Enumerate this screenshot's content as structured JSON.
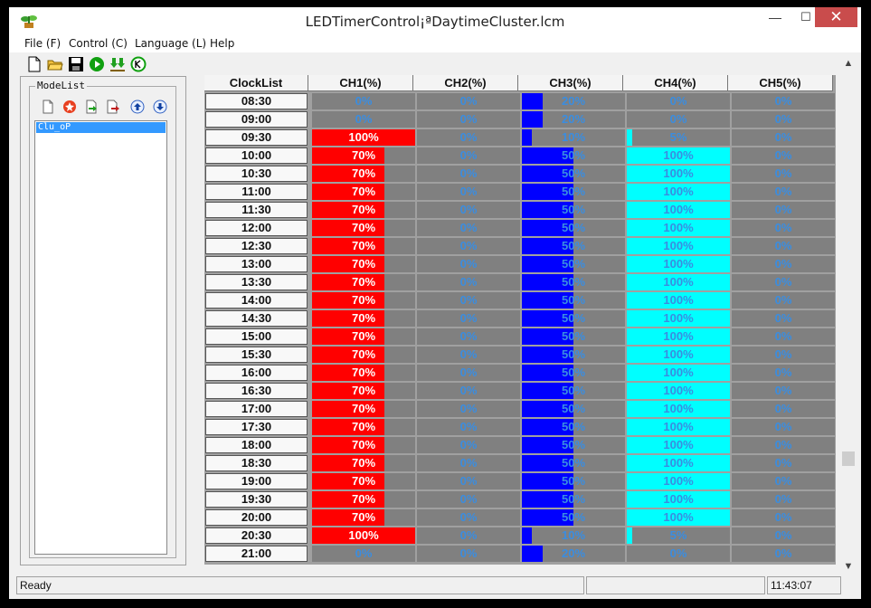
{
  "window": {
    "title": "LEDTimerControl¡ªDaytimeCluster.lcm",
    "minimize_label": "—",
    "maximize_label": "☐",
    "close_label": "✕"
  },
  "menu": [
    {
      "label": "File (F)"
    },
    {
      "label": "Control (C)"
    },
    {
      "label": "Language (L)"
    },
    {
      "label": "Help"
    }
  ],
  "toolbar": {
    "icons": [
      "new-file-icon",
      "open-folder-icon",
      "save-icon",
      "play-icon",
      "download-icon",
      "clock-icon"
    ]
  },
  "modelist": {
    "title": "ModeList",
    "tools": [
      "new-mode-icon",
      "delete-mode-icon",
      "import-icon",
      "export-icon",
      "move-up-icon",
      "move-down-icon"
    ],
    "items": [
      "Clu_oP"
    ]
  },
  "grid": {
    "columns": [
      "ClockList",
      "CH1(%)",
      "CH2(%)",
      "CH3(%)",
      "CH4(%)",
      "CH5(%)"
    ],
    "channel_colors": [
      "#ff0000",
      "#808080",
      "#0000ff",
      "#00ffff",
      "#808080"
    ],
    "rows": [
      {
        "time": "08:30",
        "values": [
          "0%",
          "0%",
          "20%",
          "0%",
          "0%"
        ],
        "levels": [
          0,
          0,
          20,
          0,
          0
        ]
      },
      {
        "time": "09:00",
        "values": [
          "0%",
          "0%",
          "20%",
          "0%",
          "0%"
        ],
        "levels": [
          0,
          0,
          20,
          0,
          0
        ]
      },
      {
        "time": "09:30",
        "values": [
          "100%",
          "0%",
          "10%",
          "5%",
          "0%"
        ],
        "levels": [
          100,
          0,
          10,
          5,
          0
        ]
      },
      {
        "time": "10:00",
        "values": [
          "70%",
          "0%",
          "50%",
          "100%",
          "0%"
        ],
        "levels": [
          70,
          0,
          50,
          100,
          0
        ]
      },
      {
        "time": "10:30",
        "values": [
          "70%",
          "0%",
          "50%",
          "100%",
          "0%"
        ],
        "levels": [
          70,
          0,
          50,
          100,
          0
        ]
      },
      {
        "time": "11:00",
        "values": [
          "70%",
          "0%",
          "50%",
          "100%",
          "0%"
        ],
        "levels": [
          70,
          0,
          50,
          100,
          0
        ]
      },
      {
        "time": "11:30",
        "values": [
          "70%",
          "0%",
          "50%",
          "100%",
          "0%"
        ],
        "levels": [
          70,
          0,
          50,
          100,
          0
        ]
      },
      {
        "time": "12:00",
        "values": [
          "70%",
          "0%",
          "50%",
          "100%",
          "0%"
        ],
        "levels": [
          70,
          0,
          50,
          100,
          0
        ]
      },
      {
        "time": "12:30",
        "values": [
          "70%",
          "0%",
          "50%",
          "100%",
          "0%"
        ],
        "levels": [
          70,
          0,
          50,
          100,
          0
        ]
      },
      {
        "time": "13:00",
        "values": [
          "70%",
          "0%",
          "50%",
          "100%",
          "0%"
        ],
        "levels": [
          70,
          0,
          50,
          100,
          0
        ]
      },
      {
        "time": "13:30",
        "values": [
          "70%",
          "0%",
          "50%",
          "100%",
          "0%"
        ],
        "levels": [
          70,
          0,
          50,
          100,
          0
        ]
      },
      {
        "time": "14:00",
        "values": [
          "70%",
          "0%",
          "50%",
          "100%",
          "0%"
        ],
        "levels": [
          70,
          0,
          50,
          100,
          0
        ]
      },
      {
        "time": "14:30",
        "values": [
          "70%",
          "0%",
          "50%",
          "100%",
          "0%"
        ],
        "levels": [
          70,
          0,
          50,
          100,
          0
        ]
      },
      {
        "time": "15:00",
        "values": [
          "70%",
          "0%",
          "50%",
          "100%",
          "0%"
        ],
        "levels": [
          70,
          0,
          50,
          100,
          0
        ]
      },
      {
        "time": "15:30",
        "values": [
          "70%",
          "0%",
          "50%",
          "100%",
          "0%"
        ],
        "levels": [
          70,
          0,
          50,
          100,
          0
        ]
      },
      {
        "time": "16:00",
        "values": [
          "70%",
          "0%",
          "50%",
          "100%",
          "0%"
        ],
        "levels": [
          70,
          0,
          50,
          100,
          0
        ]
      },
      {
        "time": "16:30",
        "values": [
          "70%",
          "0%",
          "50%",
          "100%",
          "0%"
        ],
        "levels": [
          70,
          0,
          50,
          100,
          0
        ]
      },
      {
        "time": "17:00",
        "values": [
          "70%",
          "0%",
          "50%",
          "100%",
          "0%"
        ],
        "levels": [
          70,
          0,
          50,
          100,
          0
        ]
      },
      {
        "time": "17:30",
        "values": [
          "70%",
          "0%",
          "50%",
          "100%",
          "0%"
        ],
        "levels": [
          70,
          0,
          50,
          100,
          0
        ]
      },
      {
        "time": "18:00",
        "values": [
          "70%",
          "0%",
          "50%",
          "100%",
          "0%"
        ],
        "levels": [
          70,
          0,
          50,
          100,
          0
        ]
      },
      {
        "time": "18:30",
        "values": [
          "70%",
          "0%",
          "50%",
          "100%",
          "0%"
        ],
        "levels": [
          70,
          0,
          50,
          100,
          0
        ]
      },
      {
        "time": "19:00",
        "values": [
          "70%",
          "0%",
          "50%",
          "100%",
          "0%"
        ],
        "levels": [
          70,
          0,
          50,
          100,
          0
        ]
      },
      {
        "time": "19:30",
        "values": [
          "70%",
          "0%",
          "50%",
          "100%",
          "0%"
        ],
        "levels": [
          70,
          0,
          50,
          100,
          0
        ]
      },
      {
        "time": "20:00",
        "values": [
          "70%",
          "0%",
          "50%",
          "100%",
          "0%"
        ],
        "levels": [
          70,
          0,
          50,
          100,
          0
        ]
      },
      {
        "time": "20:30",
        "values": [
          "100%",
          "0%",
          "10%",
          "5%",
          "0%"
        ],
        "levels": [
          100,
          0,
          10,
          5,
          0
        ]
      },
      {
        "time": "21:00",
        "values": [
          "0%",
          "0%",
          "20%",
          "0%",
          "0%"
        ],
        "levels": [
          0,
          0,
          20,
          0,
          0
        ]
      }
    ]
  },
  "scrollbar": {
    "up_label": "▲",
    "down_label": "▼"
  },
  "status": {
    "text": "Ready",
    "middle": "",
    "time": "11:43:07"
  }
}
